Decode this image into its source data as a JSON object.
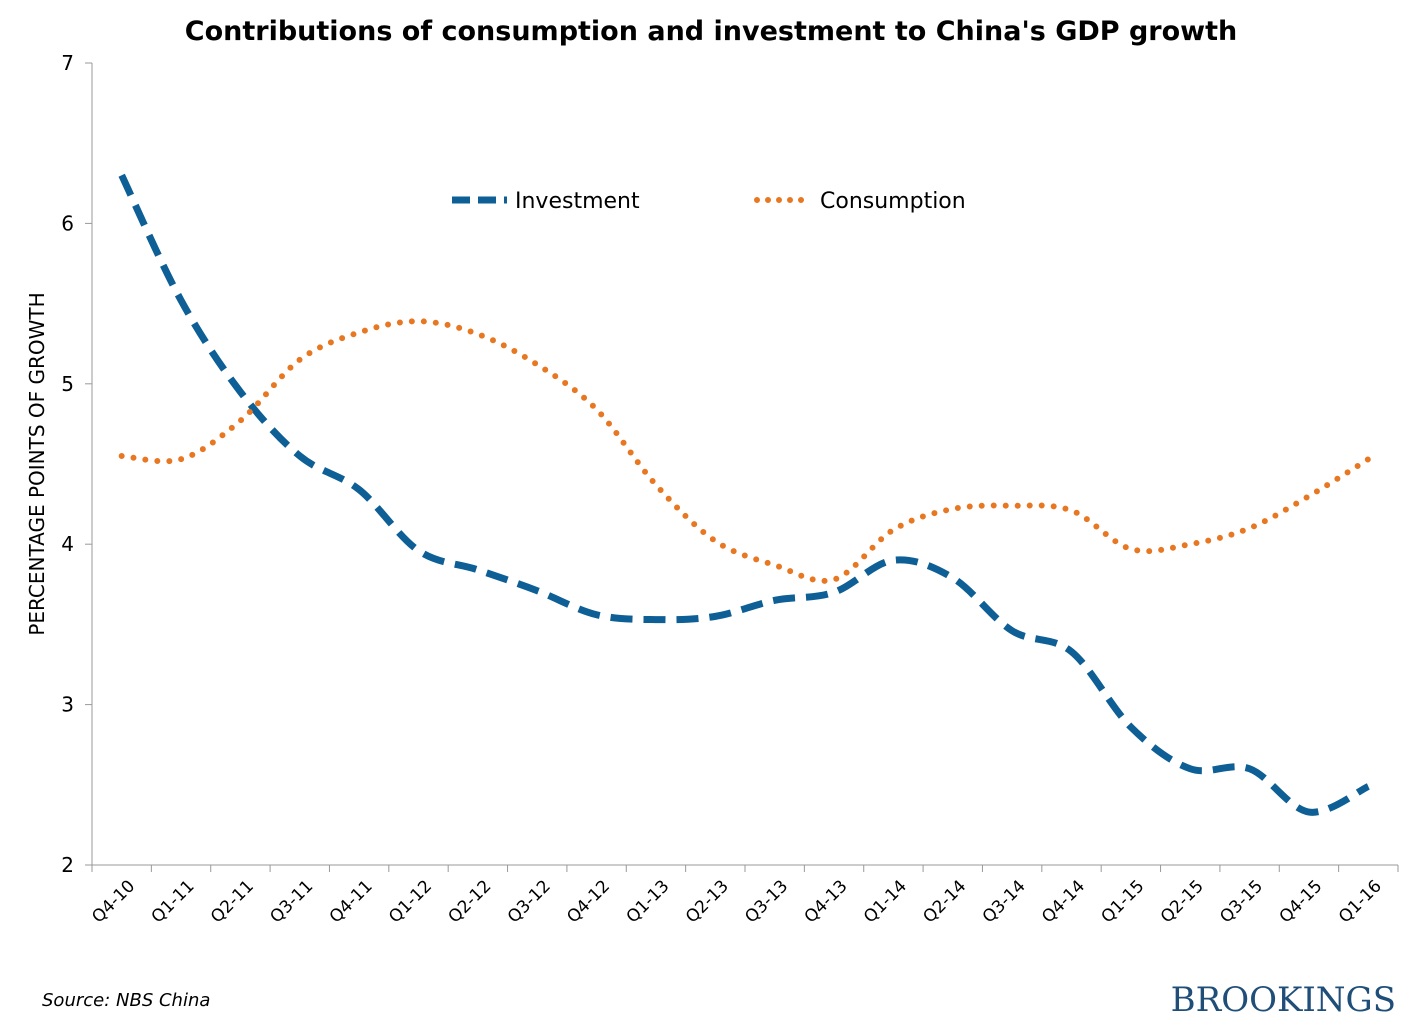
{
  "chart_data": {
    "type": "line",
    "title": "Contributions of consumption and investment to China's GDP growth",
    "xlabel": "",
    "ylabel": "PERCENTAGE POINTS OF GROWTH",
    "ylim": [
      2,
      7
    ],
    "yticks": [
      2,
      3,
      4,
      5,
      6,
      7
    ],
    "grid": false,
    "legend_placement": "top-center",
    "categories": [
      "Q4-10",
      "Q1-11",
      "Q2-11",
      "Q3-11",
      "Q4-11",
      "Q1-12",
      "Q2-12",
      "Q3-12",
      "Q4-12",
      "Q1-13",
      "Q2-13",
      "Q3-13",
      "Q4-13",
      "Q1-14",
      "Q2-14",
      "Q3-14",
      "Q4-14",
      "Q1-15",
      "Q2-15",
      "Q3-15",
      "Q4-15",
      "Q1-16"
    ],
    "series": [
      {
        "name": "Investment",
        "color": "#0d5f95",
        "style": "dashed",
        "values": [
          6.3,
          5.52,
          4.95,
          4.55,
          4.34,
          3.96,
          3.84,
          3.71,
          3.56,
          3.53,
          3.55,
          3.65,
          3.7,
          3.9,
          3.79,
          3.46,
          3.33,
          2.86,
          2.6,
          2.6,
          2.33,
          2.49
        ]
      },
      {
        "name": "Consumption",
        "color": "#e87722",
        "style": "dotted",
        "values": [
          4.55,
          4.53,
          4.77,
          5.15,
          5.32,
          5.39,
          5.31,
          5.12,
          4.84,
          4.37,
          4.02,
          3.87,
          3.78,
          4.09,
          4.22,
          4.24,
          4.21,
          3.97,
          4.0,
          4.1,
          4.3,
          4.53
        ]
      }
    ]
  },
  "source": "Source: NBS China",
  "logo_text": "BROOKINGS"
}
